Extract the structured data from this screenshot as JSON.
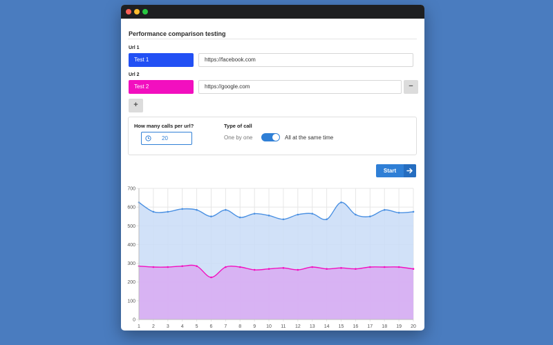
{
  "app": {
    "heading": "Performance comparison testing"
  },
  "urls": [
    {
      "label": "Url 1",
      "name": "Test 1",
      "url": "https://facebook.com",
      "color": "#2250f4"
    },
    {
      "label": "Url 2",
      "name": "Test 2",
      "url": "https://google.com",
      "color": "#f20fbf"
    }
  ],
  "buttons": {
    "remove_label": "−",
    "add_label": "+",
    "start_label": "Start"
  },
  "options": {
    "calls_label": "How many calls per url?",
    "calls_value": "20",
    "type_label": "Type of call",
    "mode_off_label": "One by one",
    "mode_on_label": "All at the same time",
    "mode_all_at_once": true
  },
  "chart_data": {
    "type": "area",
    "x": [
      1,
      2,
      3,
      4,
      5,
      6,
      7,
      8,
      9,
      10,
      11,
      12,
      13,
      14,
      15,
      16,
      17,
      18,
      19,
      20
    ],
    "x_ticks": [
      "1",
      "2",
      "3",
      "4",
      "5",
      "6",
      "7",
      "8",
      "9",
      "10",
      "11",
      "12",
      "13",
      "14",
      "15",
      "16",
      "17",
      "18",
      "19",
      "20"
    ],
    "y_ticks": [
      "0",
      "100",
      "200",
      "300",
      "400",
      "500",
      "600",
      "700"
    ],
    "ylim": [
      0,
      700
    ],
    "grid": true,
    "series": [
      {
        "values": [
          625,
          575,
          575,
          590,
          585,
          550,
          585,
          545,
          565,
          555,
          535,
          560,
          565,
          535,
          625,
          560,
          550,
          585,
          570,
          575
        ],
        "color": "#4a90e2",
        "fill": "#c9dcf7"
      },
      {
        "values": [
          285,
          280,
          280,
          285,
          285,
          225,
          280,
          280,
          265,
          270,
          275,
          265,
          280,
          270,
          275,
          270,
          280,
          280,
          280,
          270
        ],
        "color": "#f20fbf",
        "fill": "#d9aaf2"
      }
    ]
  }
}
